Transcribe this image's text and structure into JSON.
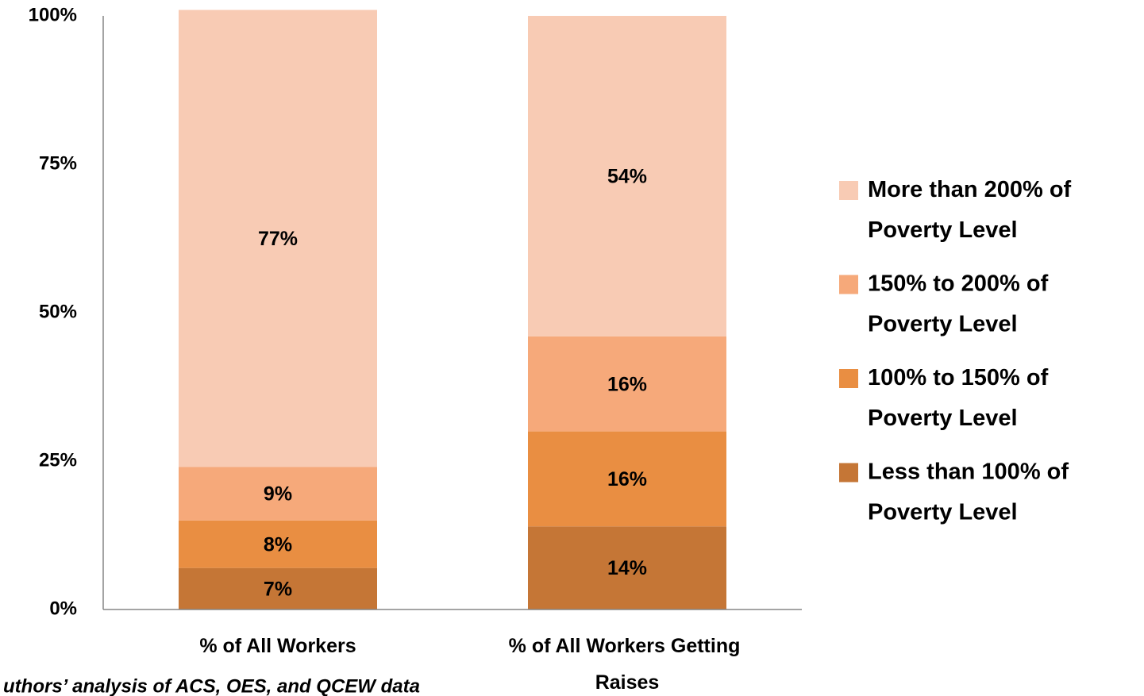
{
  "chart_data": {
    "type": "stacked_bar",
    "categories": [
      "% of All Workers",
      "% of All Workers Getting Raises"
    ],
    "series": [
      {
        "name": "Less than 100% of Poverty Level",
        "color": "#c57636",
        "values": [
          7,
          14
        ],
        "value_labels": [
          "7%",
          "14%"
        ]
      },
      {
        "name": "100% to 150% of Poverty Level",
        "color": "#e98e42",
        "values": [
          8,
          16
        ],
        "value_labels": [
          "8%",
          "16%"
        ]
      },
      {
        "name": "150% to 200% of Poverty Level",
        "color": "#f6a97a",
        "values": [
          9,
          16
        ],
        "value_labels": [
          "9%",
          "16%"
        ]
      },
      {
        "name": "More than 200% of Poverty Level",
        "color": "#f8cbb4",
        "values": [
          77,
          54
        ],
        "value_labels": [
          "77%",
          "54%"
        ]
      }
    ],
    "ylim": [
      0,
      100
    ],
    "yticks": [
      {
        "value": 0,
        "label": "0%"
      },
      {
        "value": 25,
        "label": "25%"
      },
      {
        "value": 50,
        "label": "50%"
      },
      {
        "value": 75,
        "label": "75%"
      },
      {
        "value": 100,
        "label": "100%"
      }
    ],
    "grid": false,
    "legend": "right",
    "source": "uthors’ analysis of ACS, OES, and QCEW data"
  }
}
